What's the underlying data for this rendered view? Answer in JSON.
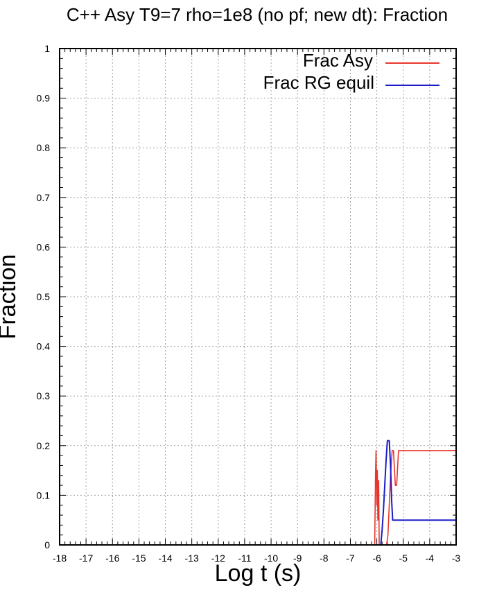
{
  "chart_data": {
    "type": "line",
    "title": "C++ Asy T9=7 rho=1e8 (no pf; new dt): Fraction",
    "xlabel": "Log t (s)",
    "ylabel": "Fraction",
    "xlim": [
      -18,
      -3
    ],
    "ylim": [
      0,
      1
    ],
    "grid": true,
    "legend_position": "top-right",
    "xticks": [
      "-18",
      "-17",
      "-16",
      "-15",
      "-14",
      "-13",
      "-12",
      "-11",
      "-10",
      "-9",
      "-8",
      "-7",
      "-6",
      "-5",
      "-4",
      "-3"
    ],
    "yticks": [
      "0",
      "0.1",
      "0.2",
      "0.3",
      "0.4",
      "0.5",
      "0.6",
      "0.7",
      "0.8",
      "0.9",
      "1"
    ],
    "series": [
      {
        "name": "Frac Asy",
        "color": "#e8352b",
        "x": [
          -6.08,
          -6.05,
          -6.03,
          -6.0,
          -5.98,
          -5.96,
          -5.93,
          -5.91,
          -5.88,
          -5.83,
          -5.78,
          -5.72,
          -5.68,
          -5.63,
          -5.58,
          -5.53,
          -5.48,
          -5.42,
          -5.37,
          -5.3,
          -5.25,
          -5.18,
          -5.1,
          -4.8,
          -4.0,
          -3.0
        ],
        "y": [
          0,
          0.14,
          0.19,
          0.08,
          0.15,
          0.05,
          0.13,
          0.0,
          0.0,
          0.0,
          0.0,
          0.0,
          0.0,
          0.0,
          0.02,
          0.08,
          0.14,
          0.19,
          0.19,
          0.12,
          0.12,
          0.19,
          0.19,
          0.19,
          0.19,
          0.19
        ]
      },
      {
        "name": "Frac RG equil",
        "color": "#1c1cc8",
        "x": [
          -6.08,
          -5.9,
          -5.85,
          -5.8,
          -5.75,
          -5.7,
          -5.65,
          -5.6,
          -5.57,
          -5.53,
          -5.48,
          -5.44,
          -5.4,
          -5.35,
          -5.3,
          -5.25,
          -5.2,
          -4.5,
          -3.0
        ],
        "y": [
          0,
          0.0,
          0.0,
          0.03,
          0.07,
          0.12,
          0.17,
          0.21,
          0.21,
          0.21,
          0.16,
          0.09,
          0.05,
          0.05,
          0.05,
          0.05,
          0.05,
          0.05,
          0.05
        ]
      }
    ]
  }
}
